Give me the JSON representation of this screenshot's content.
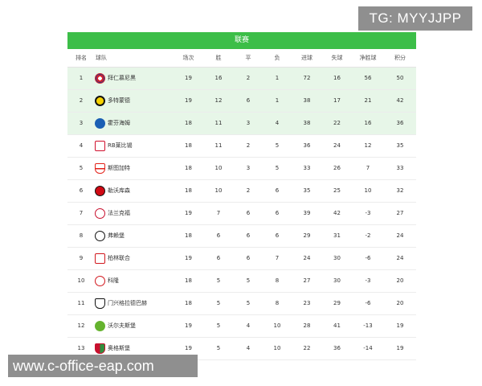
{
  "watermarks": {
    "top": "TG: MYYJJPP",
    "bottom": "www.c-office-eap.com"
  },
  "league": {
    "title": "联赛"
  },
  "columns": [
    "排名",
    "球队",
    "场次",
    "胜",
    "平",
    "负",
    "进球",
    "失球",
    "净胜球",
    "积分"
  ],
  "rows": [
    {
      "rank": "1",
      "team": "拜仁慕尼黑",
      "crest": "bayern-crest-icon",
      "played": "19",
      "won": "16",
      "drawn": "2",
      "lost": "1",
      "gf": "72",
      "ga": "16",
      "gd": "56",
      "pts": "50"
    },
    {
      "rank": "2",
      "team": "多特蒙德",
      "crest": "dortmund-crest-icon",
      "played": "19",
      "won": "12",
      "drawn": "6",
      "lost": "1",
      "gf": "38",
      "ga": "17",
      "gd": "21",
      "pts": "42"
    },
    {
      "rank": "3",
      "team": "霍芬海姆",
      "crest": "hoffenheim-crest-icon",
      "played": "18",
      "won": "11",
      "drawn": "3",
      "lost": "4",
      "gf": "38",
      "ga": "22",
      "gd": "16",
      "pts": "36"
    },
    {
      "rank": "4",
      "team": "RB莱比锡",
      "crest": "leipzig-crest-icon",
      "played": "18",
      "won": "11",
      "drawn": "2",
      "lost": "5",
      "gf": "36",
      "ga": "24",
      "gd": "12",
      "pts": "35"
    },
    {
      "rank": "5",
      "team": "斯图加特",
      "crest": "stuttgart-crest-icon",
      "played": "18",
      "won": "10",
      "drawn": "3",
      "lost": "5",
      "gf": "33",
      "ga": "26",
      "gd": "7",
      "pts": "33"
    },
    {
      "rank": "6",
      "team": "勒沃库森",
      "crest": "leverkusen-crest-icon",
      "played": "18",
      "won": "10",
      "drawn": "2",
      "lost": "6",
      "gf": "35",
      "ga": "25",
      "gd": "10",
      "pts": "32"
    },
    {
      "rank": "7",
      "team": "法兰克福",
      "crest": "frankfurt-crest-icon",
      "played": "19",
      "won": "7",
      "drawn": "6",
      "lost": "6",
      "gf": "39",
      "ga": "42",
      "gd": "-3",
      "pts": "27"
    },
    {
      "rank": "8",
      "team": "弗赖堡",
      "crest": "freiburg-crest-icon",
      "played": "18",
      "won": "6",
      "drawn": "6",
      "lost": "6",
      "gf": "29",
      "ga": "31",
      "gd": "-2",
      "pts": "24"
    },
    {
      "rank": "9",
      "team": "柏林联合",
      "crest": "union-berlin-crest-icon",
      "played": "19",
      "won": "6",
      "drawn": "6",
      "lost": "7",
      "gf": "24",
      "ga": "30",
      "gd": "-6",
      "pts": "24"
    },
    {
      "rank": "10",
      "team": "科隆",
      "crest": "koln-crest-icon",
      "played": "18",
      "won": "5",
      "drawn": "5",
      "lost": "8",
      "gf": "27",
      "ga": "30",
      "gd": "-3",
      "pts": "20"
    },
    {
      "rank": "11",
      "team": "门兴格拉德巴赫",
      "crest": "gladbach-crest-icon",
      "played": "18",
      "won": "5",
      "drawn": "5",
      "lost": "8",
      "gf": "23",
      "ga": "29",
      "gd": "-6",
      "pts": "20"
    },
    {
      "rank": "12",
      "team": "沃尔夫斯堡",
      "crest": "wolfsburg-crest-icon",
      "played": "19",
      "won": "5",
      "drawn": "4",
      "lost": "10",
      "gf": "28",
      "ga": "41",
      "gd": "-13",
      "pts": "19"
    },
    {
      "rank": "13",
      "team": "奥格斯堡",
      "crest": "augsburg-crest-icon",
      "played": "19",
      "won": "5",
      "drawn": "4",
      "lost": "10",
      "gf": "22",
      "ga": "36",
      "gd": "-14",
      "pts": "19"
    }
  ],
  "colors": {
    "header_green": "#3cbe48",
    "top3_row_bg": "#e7f6e8",
    "watermark_bg": "#8f8f8f"
  }
}
